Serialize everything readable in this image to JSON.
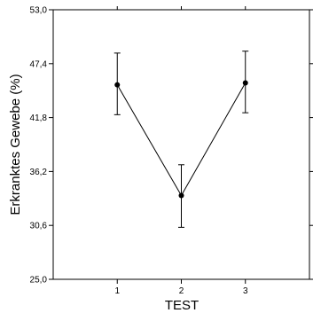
{
  "chart_data": {
    "type": "line",
    "title": "",
    "xlabel": "TEST",
    "ylabel": "Erkranktes Gewebe (%)",
    "ylim": [
      25.0,
      53.0
    ],
    "xlim": [
      0,
      4
    ],
    "y_ticks": [
      "25,0",
      "30,6",
      "36,2",
      "41,8",
      "47,4",
      "53,0"
    ],
    "y_tick_values": [
      25.0,
      30.6,
      36.2,
      41.8,
      47.4,
      53.0
    ],
    "x_ticks": [
      "1",
      "2",
      "3"
    ],
    "x_tick_values": [
      1,
      2,
      3
    ],
    "grid": false,
    "legend": "none",
    "series": [
      {
        "x": [
          1,
          2,
          3
        ],
        "values": [
          45.2,
          33.7,
          45.4
        ],
        "error_upper": [
          48.5,
          36.9,
          48.7
        ],
        "error_lower": [
          42.1,
          30.4,
          42.3
        ]
      }
    ],
    "colors": {
      "line": "#000000",
      "marker": "#000000",
      "axis": "#000000"
    }
  }
}
